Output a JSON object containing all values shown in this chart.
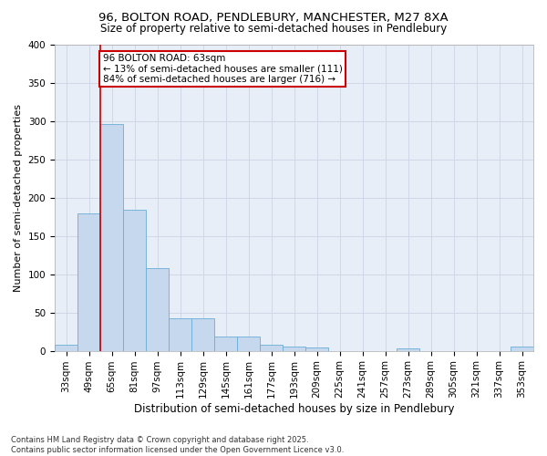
{
  "title1": "96, BOLTON ROAD, PENDLEBURY, MANCHESTER, M27 8XA",
  "title2": "Size of property relative to semi-detached houses in Pendlebury",
  "xlabel": "Distribution of semi-detached houses by size in Pendlebury",
  "ylabel": "Number of semi-detached properties",
  "footer1": "Contains HM Land Registry data © Crown copyright and database right 2025.",
  "footer2": "Contains public sector information licensed under the Open Government Licence v3.0.",
  "bin_labels": [
    "33sqm",
    "49sqm",
    "65sqm",
    "81sqm",
    "97sqm",
    "113sqm",
    "129sqm",
    "145sqm",
    "161sqm",
    "177sqm",
    "193sqm",
    "209sqm",
    "225sqm",
    "241sqm",
    "257sqm",
    "273sqm",
    "289sqm",
    "305sqm",
    "321sqm",
    "337sqm",
    "353sqm"
  ],
  "bar_values": [
    8,
    180,
    296,
    184,
    108,
    42,
    42,
    18,
    18,
    8,
    6,
    4,
    0,
    0,
    0,
    3,
    0,
    0,
    0,
    0,
    5
  ],
  "bar_color": "#c5d8ed",
  "bar_edge_color": "#6aaed6",
  "grid_color": "#d0d8e8",
  "background_color": "#e8eef8",
  "annotation_line1": "96 BOLTON ROAD: 63sqm",
  "annotation_line2": "← 13% of semi-detached houses are smaller (111)",
  "annotation_line3": "84% of semi-detached houses are larger (716) →",
  "annotation_box_color": "#ffffff",
  "annotation_box_edge": "#cc0000",
  "red_line_color": "#cc0000",
  "red_line_x": 1.5,
  "ylim": [
    0,
    400
  ],
  "yticks": [
    0,
    50,
    100,
    150,
    200,
    250,
    300,
    350,
    400
  ],
  "title1_fontsize": 9.5,
  "title2_fontsize": 8.5,
  "xlabel_fontsize": 8.5,
  "ylabel_fontsize": 8,
  "tick_fontsize": 7.5
}
